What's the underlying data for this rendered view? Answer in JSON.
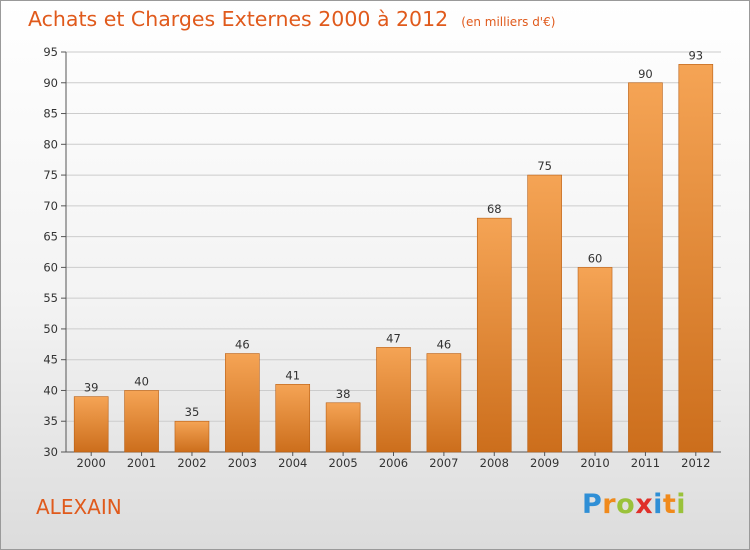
{
  "header": {
    "title": "Achats et Charges Externes 2000 à 2012",
    "unit": "(en milliers d'€)"
  },
  "footer": {
    "commune": "ALEXAIN",
    "logo_text": "Proxiti",
    "logo_colors": [
      "#2f8fd6",
      "#f08a1c",
      "#9ac23a",
      "#e0302a",
      "#2f8fd6",
      "#f08a1c",
      "#9ac23a"
    ]
  },
  "colors": {
    "bar_top": "#f5a455",
    "bar_bottom": "#cc6e1c",
    "bar_border": "#b85f15",
    "grid": "#cccccc",
    "accent": "#e05a1c"
  },
  "chart_data": {
    "type": "bar",
    "title": "Achats et Charges Externes 2000 à 2012",
    "subtitle": "(en milliers d'€)",
    "xlabel": "",
    "ylabel": "",
    "categories": [
      "2000",
      "2001",
      "2002",
      "2003",
      "2004",
      "2005",
      "2006",
      "2007",
      "2008",
      "2009",
      "2010",
      "2011",
      "2012"
    ],
    "values": [
      39,
      40,
      35,
      46,
      41,
      38,
      47,
      46,
      68,
      75,
      60,
      90,
      93
    ],
    "ylim": [
      30,
      95
    ],
    "yticks": [
      30,
      35,
      40,
      45,
      50,
      55,
      60,
      65,
      70,
      75,
      80,
      85,
      90,
      95
    ],
    "grid": true,
    "data_labels": true
  }
}
